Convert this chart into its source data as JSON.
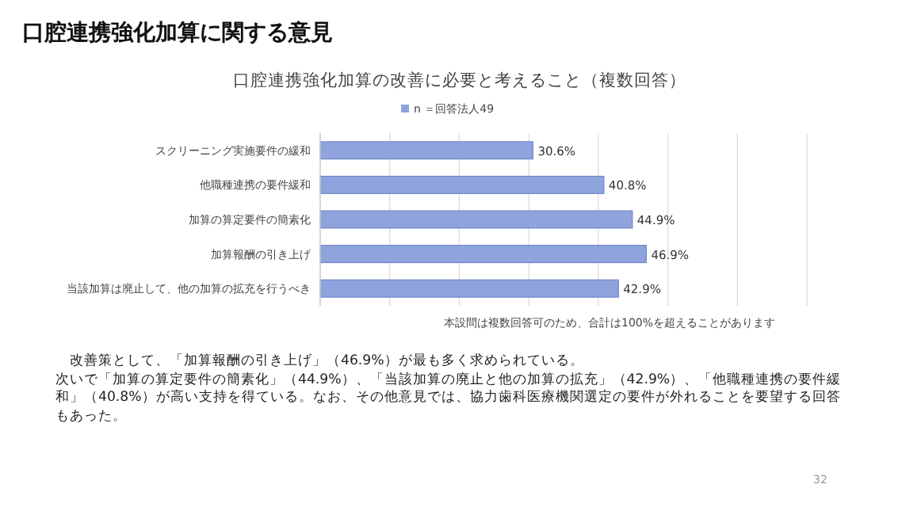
{
  "chart_data": {
    "type": "bar",
    "orientation": "horizontal",
    "title": "口腔連携強化加算に関する意見",
    "subtitle": "口腔連携強化加算の改善に必要と考えること（複数回答）",
    "categories": [
      "スクリーニング実施要件の緩和",
      "他職種連携の要件緩和",
      "加算の算定要件の簡素化",
      "加算報酬の引き上げ",
      "当該加算は廃止して、他の加算の拡充を行うべき"
    ],
    "series": [
      {
        "name": "n ＝回答法人49",
        "color": "#8fa3dc",
        "values": [
          30.6,
          40.8,
          44.9,
          46.9,
          42.9
        ],
        "value_labels": [
          "30.6%",
          "40.8%",
          "44.9%",
          "46.9%",
          "42.9%"
        ]
      }
    ],
    "xlim": [
      0,
      70
    ],
    "xticks": [
      {
        "value": 0,
        "label": null
      },
      {
        "value": 10,
        "label": null
      },
      {
        "value": 20,
        "label": null
      },
      {
        "value": 30,
        "label": null
      },
      {
        "value": 40,
        "label": null
      },
      {
        "value": 50,
        "label": null
      },
      {
        "value": 60,
        "label": null
      },
      {
        "value": 70,
        "label": null
      }
    ],
    "tick_labels": "y",
    "grid": "x",
    "legend": "top",
    "annotations": [
      "本設問は複数回答可のため、合計は100%を超えることがあります",
      "　改善策として、「加算報酬の引き上げ」（46.9%）が最も多く求められている。",
      "次いで「加算の算定要件の簡素化」（44.9%）、「当該加算の廃止と他の加算の拡充」（42.9%）、「他職種連携の要件緩和」（40.8%）が高い支持を得ている。なお、その他意見では、協力歯科医療機関選定の要件が外れることを要望する回答もあった。",
      "32"
    ]
  }
}
